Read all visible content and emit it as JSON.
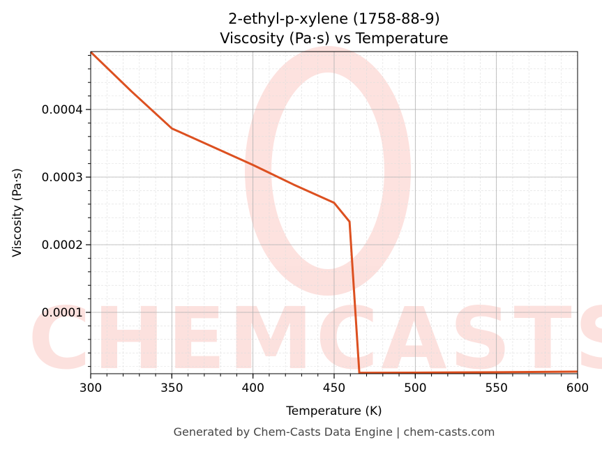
{
  "chart_data": {
    "type": "line",
    "title": "2-ethyl-p-xylene (1758-88-9)",
    "subtitle": "Viscosity (Pa·s) vs Temperature",
    "xlabel": "Temperature (K)",
    "ylabel": "Viscosity (Pa·s)",
    "xlim": [
      300,
      600
    ],
    "ylim": [
      9.3e-06,
      0.0004856
    ],
    "xticks": [
      300,
      350,
      400,
      450,
      500,
      550,
      600
    ],
    "xtick_labels": [
      "300",
      "350",
      "400",
      "450",
      "500",
      "550",
      "600"
    ],
    "yticks": [
      0.0001,
      0.0002,
      0.0003,
      0.0004
    ],
    "ytick_labels": [
      "0.0001",
      "0.0002",
      "0.0003",
      "0.0004"
    ],
    "grid": true,
    "series": [
      {
        "name": "Viscosity",
        "color": "#dc5020",
        "x": [
          300,
          325,
          350,
          375,
          400,
          425,
          450,
          459.5,
          465.5,
          500,
          550,
          600
        ],
        "y": [
          0.000485,
          0.000427,
          0.000372,
          0.000345,
          0.000318,
          0.000289,
          0.000262,
          0.000234,
          1.05e-05,
          1.08e-05,
          1.15e-05,
          1.24e-05
        ]
      }
    ],
    "watermark": "CHEMCASTS"
  },
  "footer": "Generated by Chem-Casts Data Engine | chem-casts.com"
}
